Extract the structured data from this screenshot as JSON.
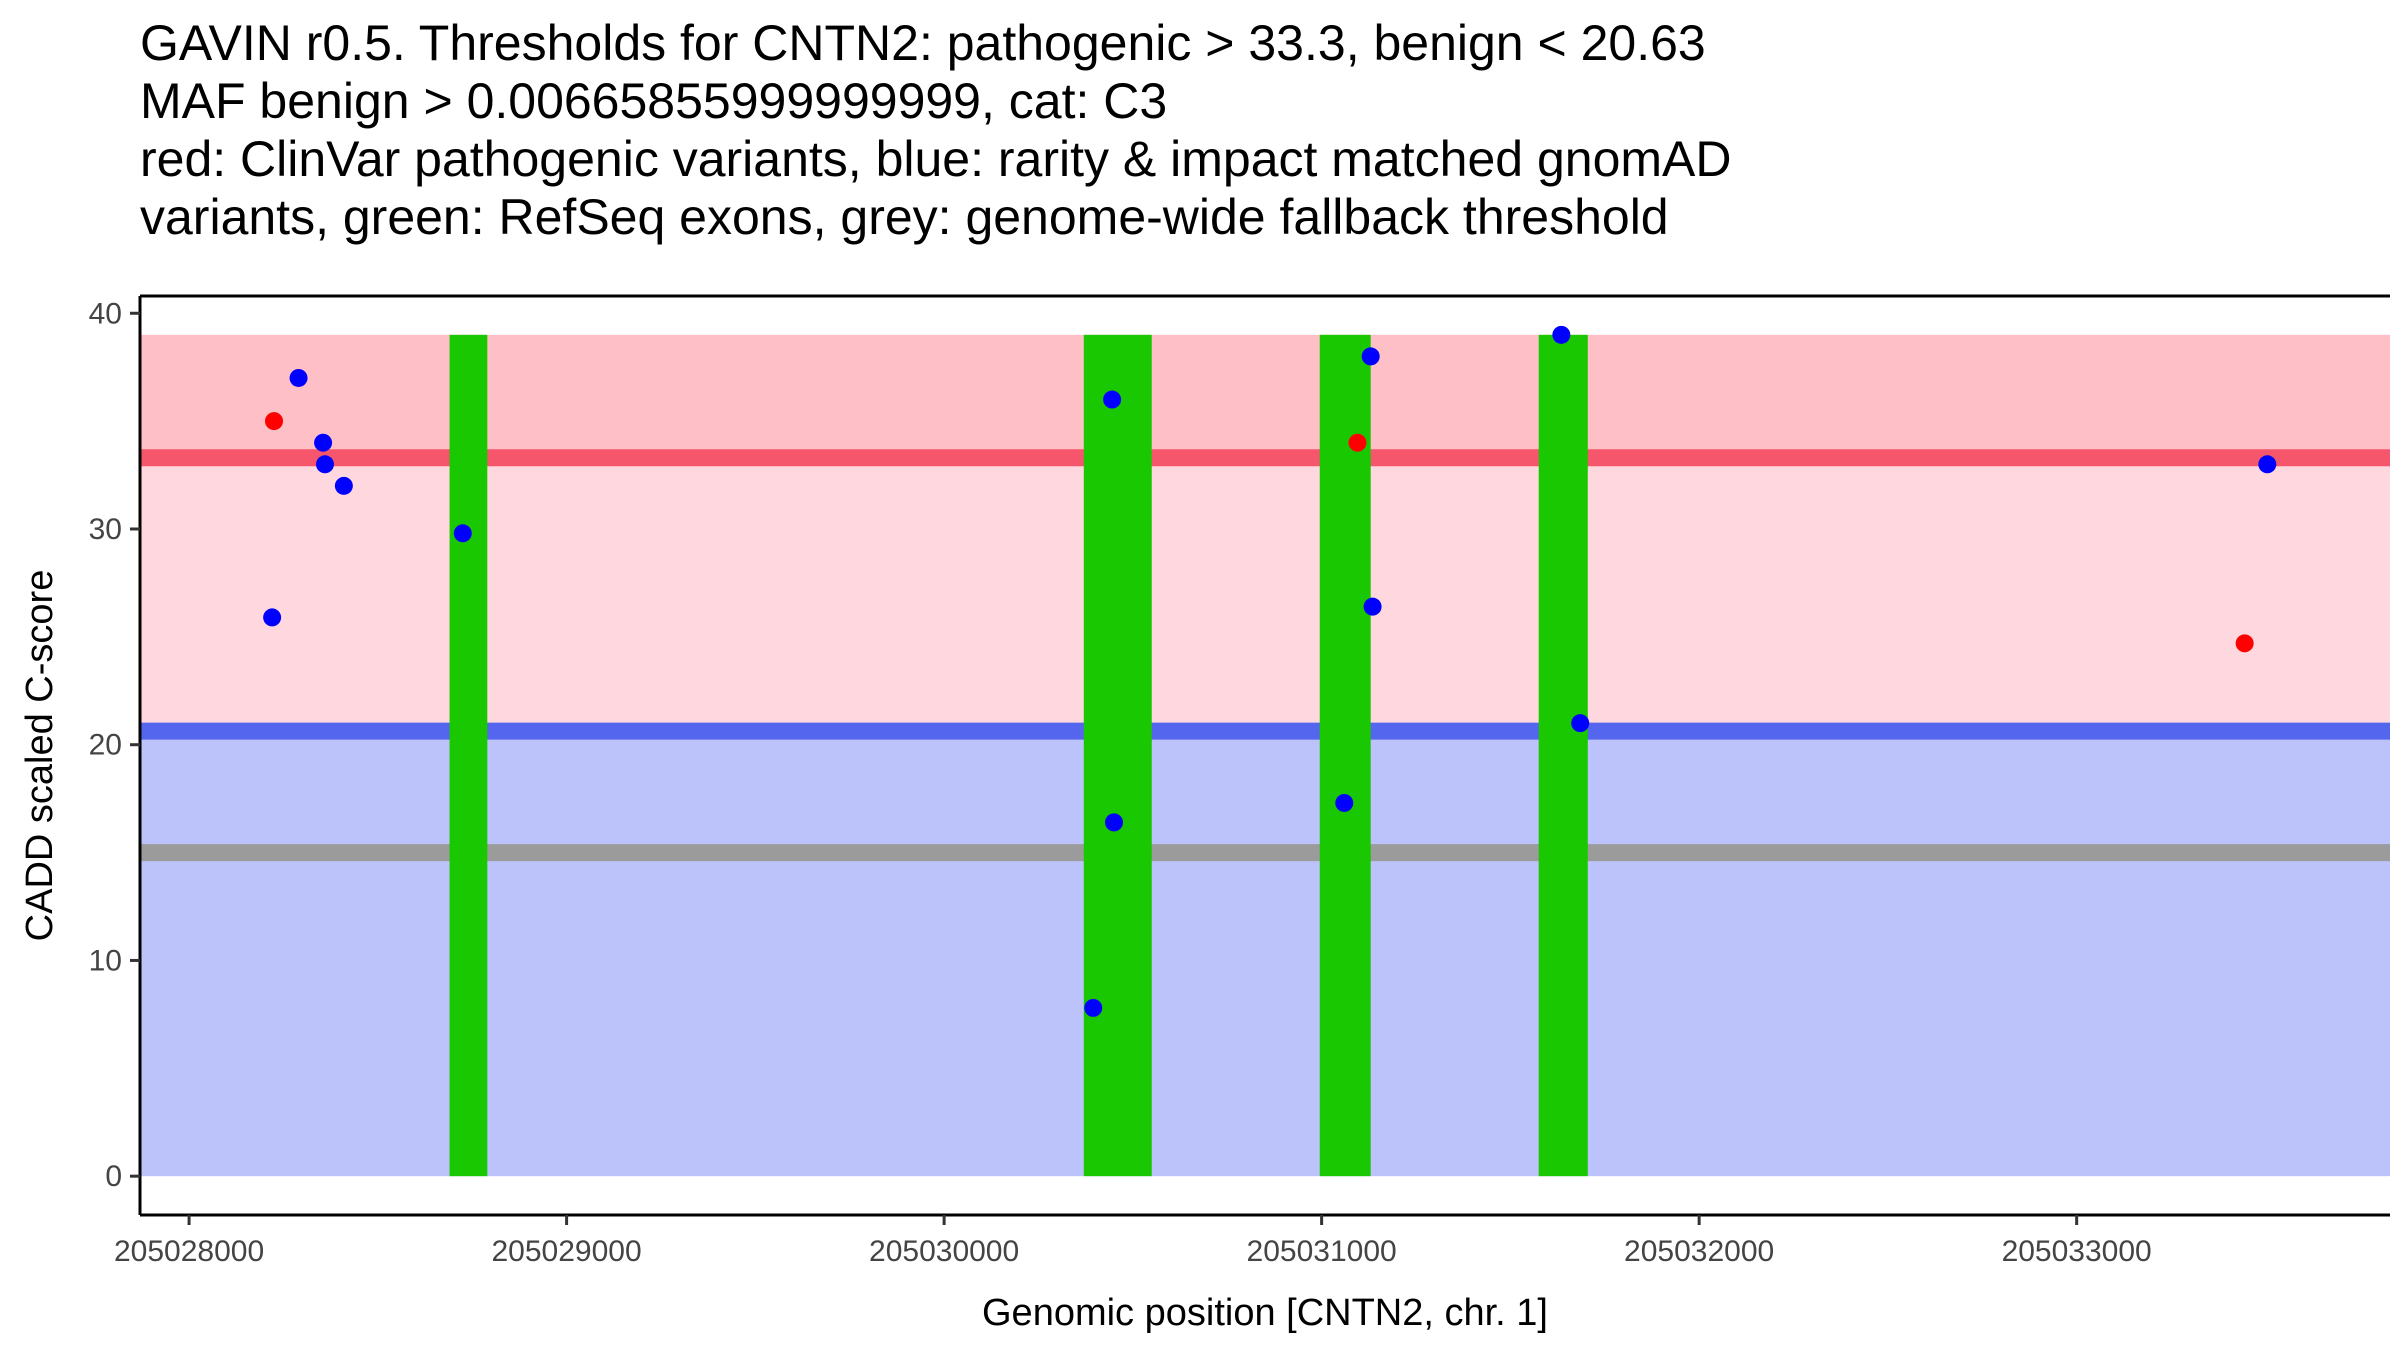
{
  "chart_data": {
    "type": "scatter",
    "title_lines": [
      "GAVIN r0.5. Thresholds for CNTN2: pathogenic > 33.3, benign < 20.63",
      "MAF benign > 0.00665855999999999, cat: C3",
      "red: ClinVar pathogenic variants, blue: rarity & impact matched gnomAD",
      "variants, green: RefSeq exons, grey: genome-wide fallback threshold"
    ],
    "xlabel": "Genomic position [CNTN2, chr. 1]",
    "ylabel": "CADD scaled C-score",
    "xlim": [
      205027870,
      205033830
    ],
    "ylim": [
      -1.8,
      40.8
    ],
    "x_ticks": [
      205028000,
      205029000,
      205030000,
      205031000,
      205032000,
      205033000
    ],
    "x_tick_labels": [
      "205028000",
      "205029000",
      "205030000",
      "205031000",
      "205032000",
      "205033000"
    ],
    "y_ticks": [
      0,
      10,
      20,
      30,
      40
    ],
    "y_tick_labels": [
      "0",
      "10",
      "20",
      "30",
      "40"
    ],
    "colors": {
      "benign_region": "#bcc2fa",
      "pathogenic_region": "#ffd8df",
      "pathogenic_top_region": "#ffbfc7",
      "pathogenic_threshold": "#f5566b",
      "benign_threshold": "#5566ee",
      "fallback_threshold": "#9b9b9b",
      "exon": "#19c800",
      "clinvar": "#ff0000",
      "gnomad": "#0000ff"
    },
    "regions": {
      "ymin": 0,
      "ymax": 39,
      "benign_upper": 20.63,
      "pathogenic_lower": 33.3
    },
    "thresholds": [
      {
        "name": "pathogenic",
        "y": 33.3
      },
      {
        "name": "benign",
        "y": 20.63
      },
      {
        "name": "fallback",
        "y": 15
      }
    ],
    "exons": [
      {
        "start": 205028690,
        "end": 205028790
      },
      {
        "start": 205030370,
        "end": 205030550
      },
      {
        "start": 205030995,
        "end": 205031130
      },
      {
        "start": 205031575,
        "end": 205031705
      }
    ],
    "series": [
      {
        "name": "ClinVar pathogenic variants",
        "color_key": "clinvar",
        "points": [
          {
            "x": 205028225,
            "y": 35
          },
          {
            "x": 205031095,
            "y": 34
          },
          {
            "x": 205033445,
            "y": 24.7
          }
        ]
      },
      {
        "name": "rarity & impact matched gnomAD variants",
        "color_key": "gnomad",
        "points": [
          {
            "x": 205028220,
            "y": 25.9
          },
          {
            "x": 205028290,
            "y": 37
          },
          {
            "x": 205028355,
            "y": 34
          },
          {
            "x": 205028360,
            "y": 33
          },
          {
            "x": 205028410,
            "y": 32
          },
          {
            "x": 205028725,
            "y": 29.8
          },
          {
            "x": 205030395,
            "y": 7.8
          },
          {
            "x": 205030445,
            "y": 36
          },
          {
            "x": 205030450,
            "y": 16.4
          },
          {
            "x": 205031060,
            "y": 17.3
          },
          {
            "x": 205031130,
            "y": 38
          },
          {
            "x": 205031135,
            "y": 26.4
          },
          {
            "x": 205031635,
            "y": 39
          },
          {
            "x": 205031685,
            "y": 21
          },
          {
            "x": 205033505,
            "y": 33
          }
        ]
      }
    ]
  }
}
